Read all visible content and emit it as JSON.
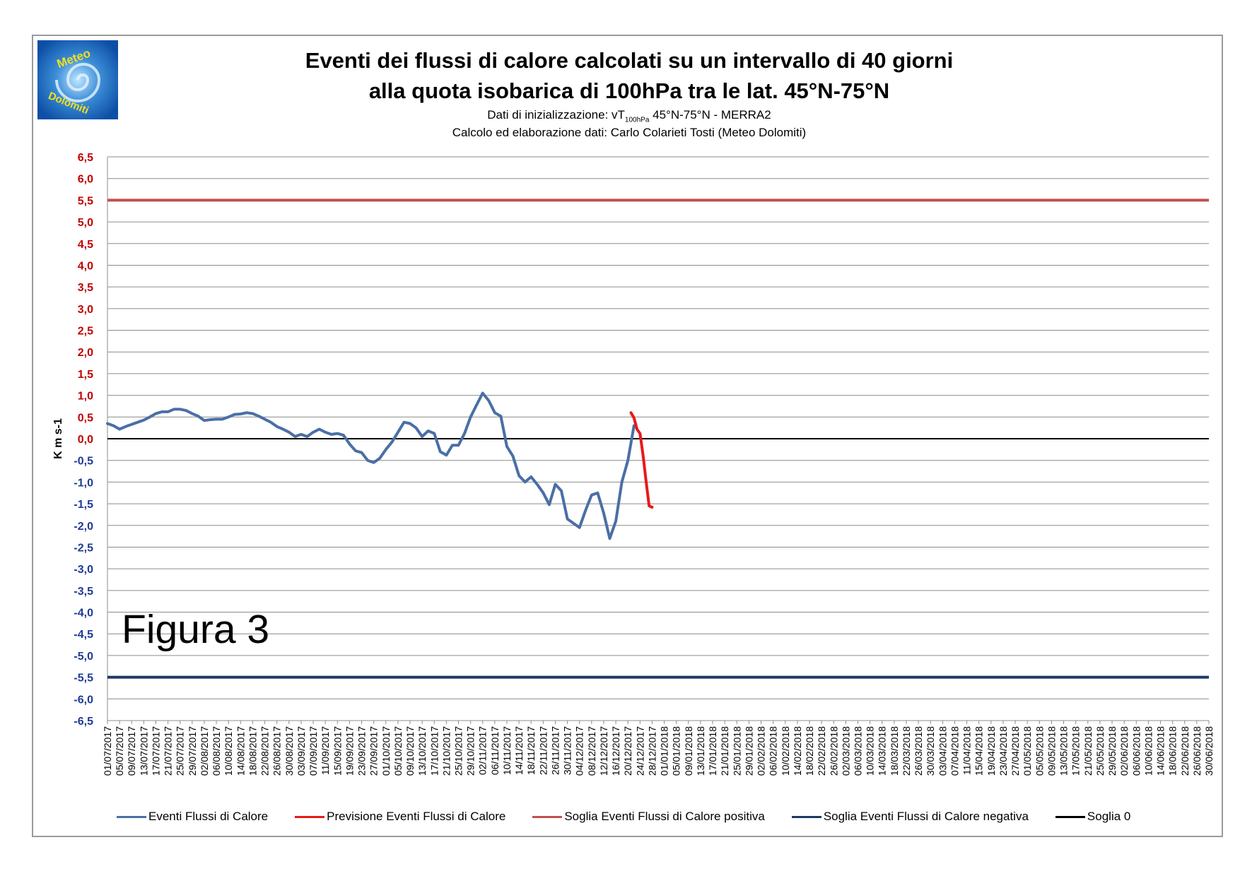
{
  "header": {
    "title_line1": "Eventi dei flussi di calore calcolati su un intervallo di 40 giorni",
    "title_line2": "alla quota isobarica di 100hPa tra le lat. 45°N-75°N",
    "subtitle1_pre": "Dati di inizializzazione: vT",
    "subtitle1_sub": "100hPa",
    "subtitle1_post": " 45°N-75°N - MERRA2",
    "subtitle2": "Calcolo ed elaborazione dati: Carlo Colarieti Tosti (Meteo Dolomiti)"
  },
  "logo": {
    "text_top": "Meteo",
    "text_bottom": "Dolomiti"
  },
  "figure_label": "Figura 3",
  "chart_data": {
    "type": "line",
    "ylabel": "K m s-1",
    "ylim": [
      -6.5,
      6.5
    ],
    "ytick_step": 0.5,
    "ytick_labels": [
      "6,5",
      "6,0",
      "5,5",
      "5,0",
      "4,5",
      "4,0",
      "3,5",
      "3,0",
      "2,5",
      "2,0",
      "1,5",
      "1,0",
      "0,5",
      "0,0",
      "-0,5",
      "-1,0",
      "-1,5",
      "-2,0",
      "-2,5",
      "-3,0",
      "-3,5",
      "-4,0",
      "-4,5",
      "-5,0",
      "-5,5",
      "-6,0",
      "-6,5"
    ],
    "ytick_positive_color": "#c00000",
    "ytick_negative_color": "#1f3a93",
    "x_labels": [
      "01/07/2017",
      "05/07/2017",
      "09/07/2017",
      "13/07/2017",
      "17/07/2017",
      "21/07/2017",
      "25/07/2017",
      "29/07/2017",
      "02/08/2017",
      "06/08/2017",
      "10/08/2017",
      "14/08/2017",
      "18/08/2017",
      "22/08/2017",
      "26/08/2017",
      "30/08/2017",
      "03/09/2017",
      "07/09/2017",
      "11/09/2017",
      "15/09/2017",
      "19/09/2017",
      "23/09/2017",
      "27/09/2017",
      "01/10/2017",
      "05/10/2017",
      "09/10/2017",
      "13/10/2017",
      "17/10/2017",
      "21/10/2017",
      "25/10/2017",
      "29/10/2017",
      "02/11/2017",
      "06/11/2017",
      "10/11/2017",
      "14/11/2017",
      "18/11/2017",
      "22/11/2017",
      "26/11/2017",
      "30/11/2017",
      "04/12/2017",
      "08/12/2017",
      "12/12/2017",
      "16/12/2017",
      "20/12/2017",
      "24/12/2017",
      "28/12/2017",
      "01/01/2018",
      "05/01/2018",
      "09/01/2018",
      "13/01/2018",
      "17/01/2018",
      "21/01/2018",
      "25/01/2018",
      "29/01/2018",
      "02/02/2018",
      "06/02/2018",
      "10/02/2018",
      "14/02/2018",
      "18/02/2018",
      "22/02/2018",
      "26/02/2018",
      "02/03/2018",
      "06/03/2018",
      "10/03/2018",
      "14/03/2018",
      "18/03/2018",
      "22/03/2018",
      "26/03/2018",
      "30/03/2018",
      "03/04/2018",
      "07/04/2018",
      "11/04/2018",
      "15/04/2018",
      "19/04/2018",
      "23/04/2018",
      "27/04/2018",
      "01/05/2018",
      "05/05/2018",
      "09/05/2018",
      "13/05/2018",
      "17/05/2018",
      "21/05/2018",
      "25/05/2018",
      "29/05/2018",
      "02/06/2018",
      "06/06/2018",
      "10/06/2018",
      "14/06/2018",
      "18/06/2018",
      "22/06/2018",
      "26/06/2018",
      "30/06/2018"
    ],
    "series": [
      {
        "name": "Eventi Flussi di Calore",
        "color": "#4a6fa5",
        "x": [
          "01/07/2017",
          "03/07/2017",
          "05/07/2017",
          "07/07/2017",
          "09/07/2017",
          "11/07/2017",
          "13/07/2017",
          "15/07/2017",
          "17/07/2017",
          "19/07/2017",
          "21/07/2017",
          "23/07/2017",
          "25/07/2017",
          "27/07/2017",
          "29/07/2017",
          "31/07/2017",
          "02/08/2017",
          "04/08/2017",
          "06/08/2017",
          "08/08/2017",
          "10/08/2017",
          "12/08/2017",
          "14/08/2017",
          "16/08/2017",
          "18/08/2017",
          "20/08/2017",
          "22/08/2017",
          "24/08/2017",
          "26/08/2017",
          "28/08/2017",
          "30/08/2017",
          "01/09/2017",
          "03/09/2017",
          "05/09/2017",
          "07/09/2017",
          "09/09/2017",
          "11/09/2017",
          "13/09/2017",
          "15/09/2017",
          "17/09/2017",
          "19/09/2017",
          "21/09/2017",
          "23/09/2017",
          "25/09/2017",
          "27/09/2017",
          "29/09/2017",
          "01/10/2017",
          "03/10/2017",
          "05/10/2017",
          "07/10/2017",
          "09/10/2017",
          "11/10/2017",
          "13/10/2017",
          "15/10/2017",
          "17/10/2017",
          "19/10/2017",
          "21/10/2017",
          "23/10/2017",
          "25/10/2017",
          "27/10/2017",
          "29/10/2017",
          "31/10/2017",
          "02/11/2017",
          "04/11/2017",
          "06/11/2017",
          "08/11/2017",
          "10/11/2017",
          "12/11/2017",
          "14/11/2017",
          "16/11/2017",
          "18/11/2017",
          "20/11/2017",
          "22/11/2017",
          "24/11/2017",
          "26/11/2017",
          "28/11/2017",
          "30/11/2017",
          "02/12/2017",
          "04/12/2017",
          "06/12/2017",
          "08/12/2017",
          "10/12/2017",
          "12/12/2017",
          "14/12/2017",
          "16/12/2017",
          "18/12/2017",
          "20/12/2017",
          "22/12/2017"
        ],
        "y": [
          0.35,
          0.3,
          0.22,
          0.28,
          0.33,
          0.38,
          0.43,
          0.5,
          0.58,
          0.62,
          0.62,
          0.68,
          0.68,
          0.65,
          0.58,
          0.52,
          0.42,
          0.44,
          0.45,
          0.45,
          0.5,
          0.56,
          0.57,
          0.6,
          0.58,
          0.52,
          0.45,
          0.38,
          0.28,
          0.22,
          0.15,
          0.05,
          0.1,
          0.05,
          0.15,
          0.22,
          0.15,
          0.1,
          0.12,
          0.08,
          -0.12,
          -0.28,
          -0.32,
          -0.5,
          -0.55,
          -0.45,
          -0.25,
          -0.08,
          0.15,
          0.38,
          0.35,
          0.25,
          0.05,
          0.18,
          0.12,
          -0.3,
          -0.38,
          -0.15,
          -0.15,
          0.12,
          0.5,
          0.78,
          1.05,
          0.88,
          0.6,
          0.52,
          -0.18,
          -0.4,
          -0.85,
          -1.0,
          -0.88,
          -1.05,
          -1.25,
          -1.52,
          -1.05,
          -1.2,
          -1.85,
          -1.95,
          -2.05,
          -1.65,
          -1.3,
          -1.25,
          -1.72,
          -2.3,
          -1.9,
          -1.0,
          -0.5,
          0.3
        ]
      },
      {
        "name": "Previsione Eventi Flussi di Calore",
        "color": "#e8191a",
        "x": [
          "21/12/2017",
          "22/12/2017",
          "23/12/2017",
          "24/12/2017",
          "25/12/2017",
          "26/12/2017",
          "27/12/2017",
          "28/12/2017"
        ],
        "y": [
          0.6,
          0.48,
          0.22,
          0.12,
          -0.38,
          -0.98,
          -1.55,
          -1.58
        ]
      },
      {
        "name": "Soglia Eventi Flussi di Calore positiva",
        "color": "#c0504d",
        "constant": 5.5
      },
      {
        "name": "Soglia Eventi Flussi di Calore negativa",
        "color": "#1f3864",
        "constant": -5.5
      },
      {
        "name": "Soglia 0",
        "color": "#000000",
        "constant": 0
      }
    ],
    "grid": true,
    "legend_position": "bottom"
  }
}
